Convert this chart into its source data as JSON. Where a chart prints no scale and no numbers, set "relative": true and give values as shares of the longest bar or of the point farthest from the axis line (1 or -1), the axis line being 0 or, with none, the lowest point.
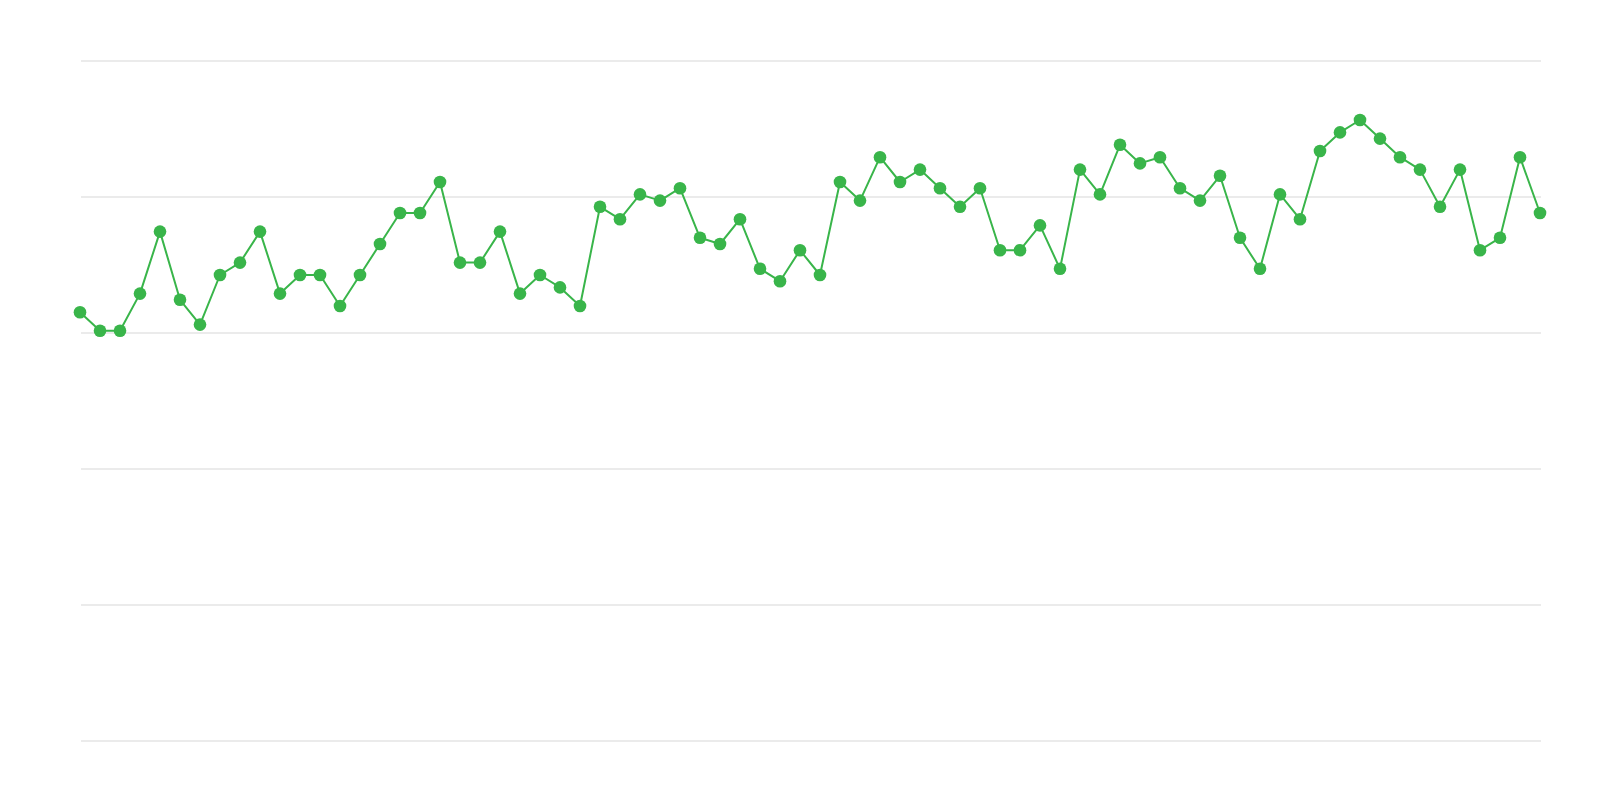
{
  "chart_data": {
    "type": "line",
    "relative": true,
    "grid": "y",
    "marker": "circle",
    "line_style": "solid",
    "categories": [
      null,
      null,
      null,
      null,
      null,
      null,
      null,
      null,
      null,
      null,
      null,
      null,
      null,
      null,
      null,
      null,
      null,
      null,
      null,
      null,
      null,
      null,
      null,
      null,
      null,
      null,
      null,
      null,
      null,
      null,
      null,
      null,
      null,
      null,
      null,
      null,
      null,
      null,
      null,
      null,
      null,
      null,
      null,
      null,
      null,
      null,
      null,
      null,
      null,
      null,
      null,
      null,
      null,
      null,
      null,
      null,
      null,
      null,
      null,
      null,
      null,
      null,
      null,
      null,
      null,
      null,
      null,
      null,
      null,
      null,
      null,
      null,
      null,
      null
    ],
    "series": [
      {
        "color": "#39b54a",
        "values": [
          0.69,
          0.66,
          0.66,
          0.72,
          0.82,
          0.71,
          0.67,
          0.75,
          0.77,
          0.82,
          0.72,
          0.75,
          0.75,
          0.7,
          0.75,
          0.8,
          0.85,
          0.85,
          0.9,
          0.77,
          0.77,
          0.82,
          0.72,
          0.75,
          0.73,
          0.7,
          0.86,
          0.84,
          0.88,
          0.87,
          0.89,
          0.81,
          0.8,
          0.84,
          0.76,
          0.74,
          0.79,
          0.75,
          0.9,
          0.87,
          0.94,
          0.9,
          0.92,
          0.89,
          0.86,
          0.89,
          0.79,
          0.79,
          0.83,
          0.76,
          0.92,
          0.88,
          0.96,
          0.93,
          0.94,
          0.89,
          0.87,
          0.91,
          0.81,
          0.76,
          0.88,
          0.84,
          0.95,
          0.98,
          1,
          0.97,
          0.94,
          0.92,
          0.86,
          0.92,
          0.79,
          0.81,
          0.94,
          0.85
        ]
      }
    ]
  }
}
